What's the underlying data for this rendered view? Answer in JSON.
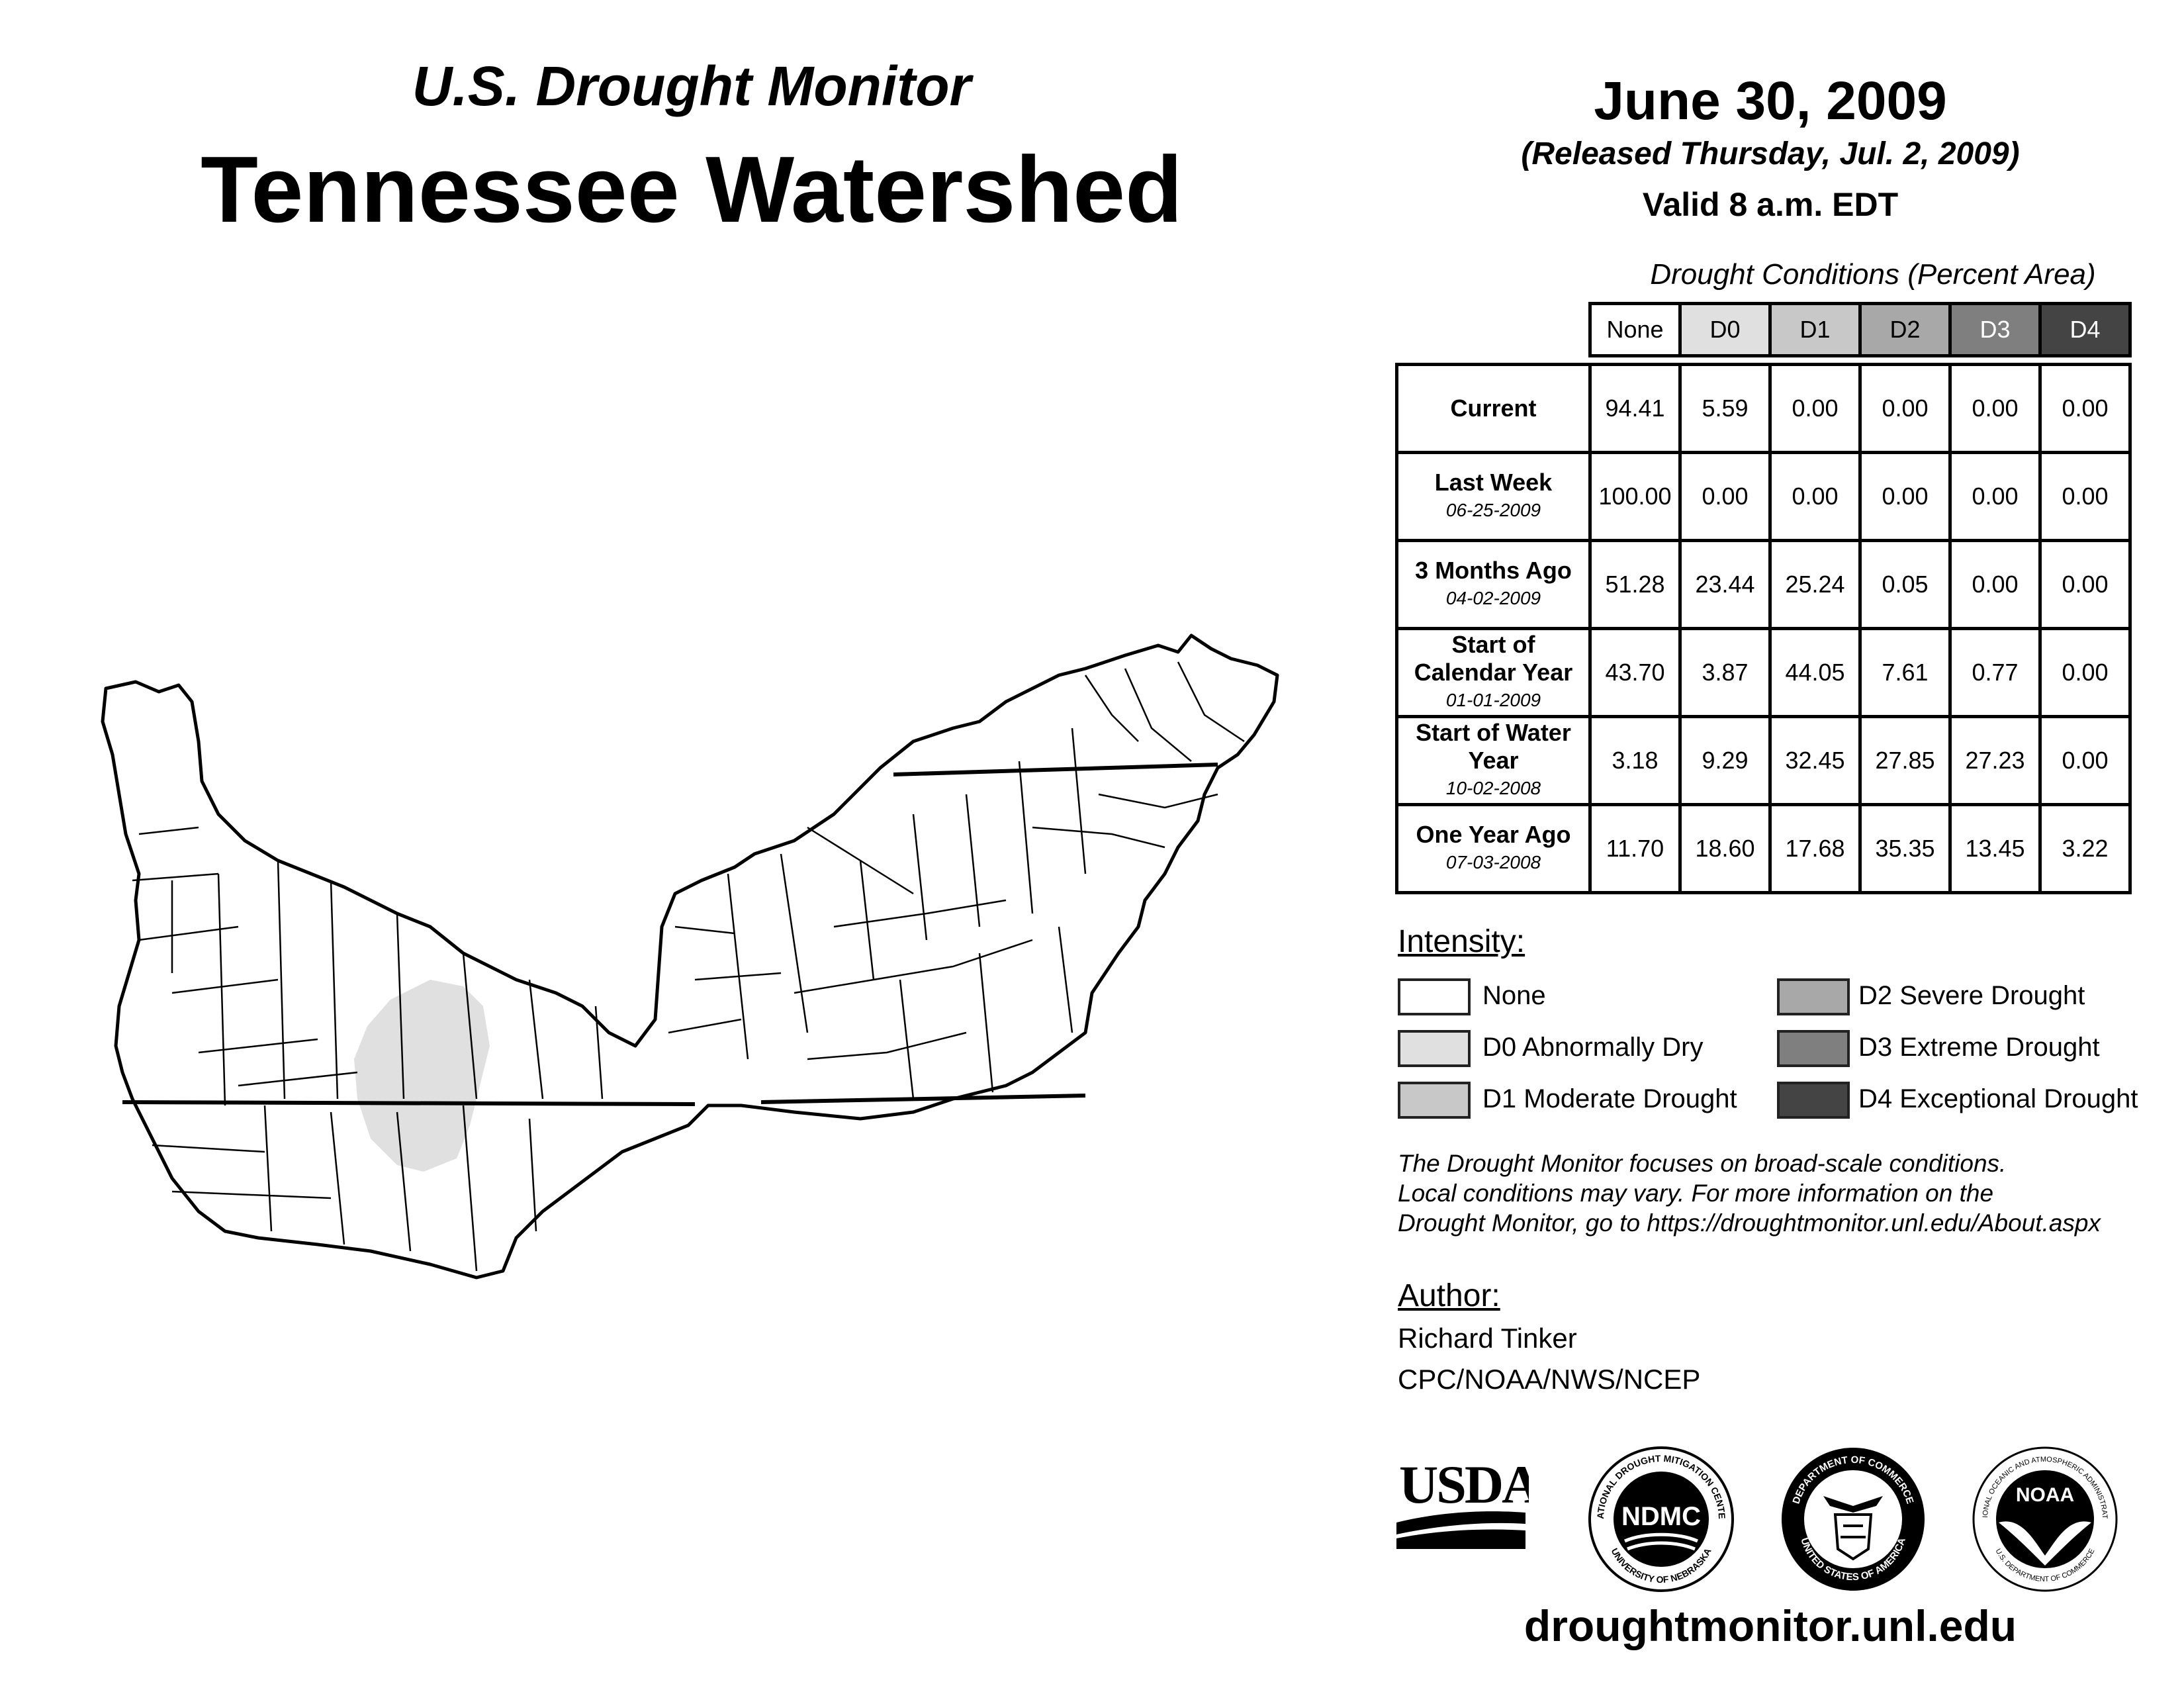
{
  "header": {
    "subtitle": "U.S. Drought Monitor",
    "title": "Tennessee Watershed",
    "date": "June 30, 2009",
    "released": "(Released Thursday, Jul. 2, 2009)",
    "valid": "Valid 8 a.m. EDT"
  },
  "table": {
    "caption": "Drought Conditions (Percent Area)",
    "columns": [
      "None",
      "D0",
      "D1",
      "D2",
      "D3",
      "D4"
    ],
    "rows": [
      {
        "label": "Current",
        "date": "",
        "values": [
          "94.41",
          "5.59",
          "0.00",
          "0.00",
          "0.00",
          "0.00"
        ]
      },
      {
        "label": "Last Week",
        "date": "06-25-2009",
        "values": [
          "100.00",
          "0.00",
          "0.00",
          "0.00",
          "0.00",
          "0.00"
        ]
      },
      {
        "label": "3 Months Ago",
        "date": "04-02-2009",
        "values": [
          "51.28",
          "23.44",
          "25.24",
          "0.05",
          "0.00",
          "0.00"
        ]
      },
      {
        "label": "Start of Calendar Year",
        "date": "01-01-2009",
        "values": [
          "43.70",
          "3.87",
          "44.05",
          "7.61",
          "0.77",
          "0.00"
        ]
      },
      {
        "label": "Start of Water Year",
        "date": "10-02-2008",
        "values": [
          "3.18",
          "9.29",
          "32.45",
          "27.85",
          "27.23",
          "0.00"
        ]
      },
      {
        "label": "One Year Ago",
        "date": "07-03-2008",
        "values": [
          "11.70",
          "18.60",
          "17.68",
          "35.35",
          "13.45",
          "3.22"
        ]
      }
    ]
  },
  "legend": {
    "heading": "Intensity:",
    "items": [
      {
        "label": "None",
        "color": "#ffffff"
      },
      {
        "label": "D0 Abnormally Dry",
        "color": "#e0e0e0"
      },
      {
        "label": "D1 Moderate Drought",
        "color": "#c8c8c8"
      },
      {
        "label": "D2 Severe Drought",
        "color": "#a8a8a8"
      },
      {
        "label": "D3 Extreme Drought",
        "color": "#7f7f7f"
      },
      {
        "label": "D4 Exceptional Drought",
        "color": "#444444"
      }
    ]
  },
  "notes": [
    "The Drought Monitor focuses on broad-scale conditions.",
    "Local conditions may vary. For more information on the",
    "Drought Monitor, go to https://droughtmonitor.unl.edu/About.aspx"
  ],
  "author": {
    "heading": "Author:",
    "name": "Richard Tinker",
    "org": "CPC/NOAA/NWS/NCEP"
  },
  "logos": {
    "usda": "USDA",
    "ndmc": "NDMC",
    "ndmc_ring_top": "NATIONAL DROUGHT MITIGATION CENTER",
    "ndmc_ring_bottom": "UNIVERSITY OF NEBRASKA",
    "doc_ring_top": "DEPARTMENT OF COMMERCE",
    "doc_ring_bottom": "UNITED STATES OF AMERICA",
    "noaa": "NOAA",
    "noaa_ring_top": "NATIONAL OCEANIC AND ATMOSPHERIC ADMINISTRATION",
    "noaa_ring_bottom": "U.S. DEPARTMENT OF COMMERCE"
  },
  "map": {
    "region": "Tennessee Watershed",
    "d0_category": "D0"
  },
  "footer": {
    "url": "droughtmonitor.unl.edu"
  }
}
